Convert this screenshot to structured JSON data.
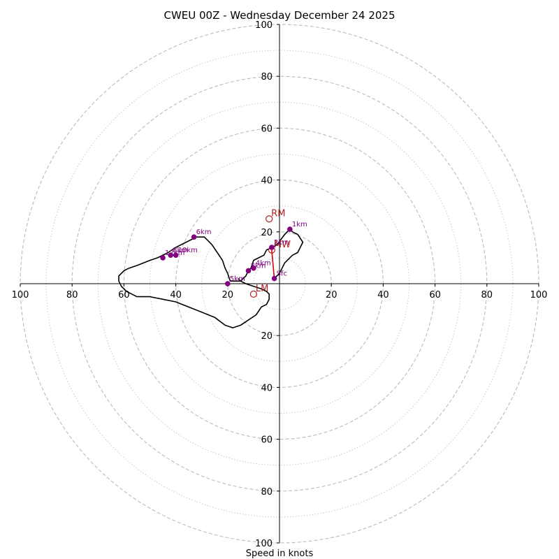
{
  "chart_data": {
    "type": "hodograph",
    "title": "CWEU 00Z - Wednesday December 24 2025",
    "xlabel": "Speed in knots",
    "max_speed": 100,
    "dashed_rings": [
      20,
      40,
      60,
      80,
      100
    ],
    "dotted_rings": [
      10,
      30,
      50,
      70,
      90
    ],
    "tick_labels": {
      "x_left": [
        "100",
        "80",
        "60",
        "40",
        "20"
      ],
      "x_right": [
        "20",
        "40",
        "60",
        "80",
        "100"
      ],
      "y_top": [
        "100",
        "80",
        "60",
        "40",
        "20"
      ],
      "y_bottom": [
        "20",
        "40",
        "60",
        "80",
        "100"
      ]
    },
    "colors": {
      "trace": "#000000",
      "height_marker": "#800080",
      "motion": "#b22222",
      "shear_vector": "#dd0000",
      "rings": "#bbbbbb"
    },
    "trace": [
      [
        -2,
        2
      ],
      [
        0,
        4
      ],
      [
        2,
        8
      ],
      [
        5,
        11
      ],
      [
        7,
        12
      ],
      [
        9,
        16
      ],
      [
        7,
        19
      ],
      [
        5,
        20
      ],
      [
        4,
        21
      ],
      [
        2,
        19
      ],
      [
        -1,
        15
      ],
      [
        -3,
        14
      ],
      [
        -5,
        13
      ],
      [
        -6,
        11
      ],
      [
        -8,
        10
      ],
      [
        -10,
        9
      ],
      [
        -11,
        6
      ],
      [
        -12,
        5
      ],
      [
        -13,
        3
      ],
      [
        -14,
        2
      ],
      [
        -15,
        1
      ],
      [
        -17,
        1
      ],
      [
        -19,
        1
      ],
      [
        -20,
        4
      ],
      [
        -21,
        6
      ],
      [
        -22,
        9
      ],
      [
        -24,
        12
      ],
      [
        -26,
        15
      ],
      [
        -27,
        16
      ],
      [
        -29,
        18
      ],
      [
        -32,
        18
      ],
      [
        -36,
        16
      ],
      [
        -40,
        14
      ],
      [
        -43,
        12
      ],
      [
        -47,
        10
      ],
      [
        -50,
        9
      ],
      [
        -55,
        7
      ],
      [
        -58,
        6
      ],
      [
        -60,
        5
      ],
      [
        -62,
        3
      ],
      [
        -62,
        1
      ],
      [
        -61,
        -1
      ],
      [
        -59,
        -3
      ],
      [
        -57,
        -4
      ],
      [
        -55,
        -5
      ],
      [
        -50,
        -5
      ],
      [
        -45,
        -6
      ],
      [
        -40,
        -7
      ],
      [
        -35,
        -9
      ],
      [
        -30,
        -11
      ],
      [
        -25,
        -13
      ],
      [
        -21,
        -16
      ],
      [
        -18,
        -17
      ],
      [
        -15,
        -16
      ],
      [
        -12,
        -14
      ],
      [
        -9,
        -12
      ],
      [
        -7,
        -9
      ],
      [
        -5,
        -8
      ],
      [
        -4,
        -6
      ],
      [
        -4,
        -4
      ],
      [
        -5,
        -3
      ],
      [
        -7,
        -2
      ],
      [
        -10,
        -1
      ],
      [
        -13,
        0
      ],
      [
        -15,
        1
      ],
      [
        -16,
        2
      ]
    ],
    "height_points": [
      {
        "label": "Sfc",
        "u": -2,
        "v": 2
      },
      {
        "label": "1km",
        "u": 4,
        "v": 21
      },
      {
        "label": "2km",
        "u": -3,
        "v": 14
      },
      {
        "label": "3km",
        "u": -12,
        "v": 5
      },
      {
        "label": "4km",
        "u": -10,
        "v": 6
      },
      {
        "label": "5km",
        "u": -20,
        "v": 0
      },
      {
        "label": "6km",
        "u": -33,
        "v": 18
      },
      {
        "label": "8km",
        "u": -42,
        "v": 11
      },
      {
        "label": "10km",
        "u": -40,
        "v": 11
      },
      {
        "label": "12km",
        "u": -45,
        "v": 10
      }
    ],
    "storm_motion": [
      {
        "label": "RM",
        "u": -4,
        "v": 25
      },
      {
        "label": "MW",
        "u": -3,
        "v": 13
      },
      {
        "label": "LM",
        "u": -10,
        "v": -4
      }
    ]
  }
}
